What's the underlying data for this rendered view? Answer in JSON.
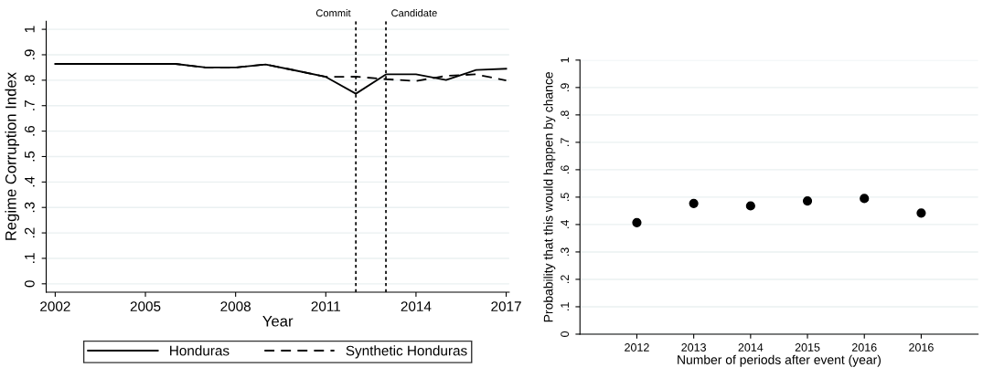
{
  "chart_data": [
    {
      "type": "line",
      "xlabel": "Year",
      "ylabel": "Regime Corruption Index",
      "x": [
        2002,
        2003,
        2004,
        2005,
        2006,
        2007,
        2008,
        2009,
        2010,
        2011,
        2012,
        2013,
        2014,
        2015,
        2016,
        2017
      ],
      "series": [
        {
          "name": "Honduras",
          "color": "#000000",
          "line_style": "solid",
          "values": [
            0.864,
            0.864,
            0.864,
            0.864,
            0.864,
            0.85,
            0.85,
            0.862,
            0.838,
            0.813,
            0.747,
            0.823,
            0.823,
            0.801,
            0.84,
            0.845
          ]
        },
        {
          "name": "Synthetic Honduras",
          "color": "#000000",
          "line_style": "dashed",
          "values": [
            0.864,
            0.864,
            0.864,
            0.864,
            0.864,
            0.85,
            0.85,
            0.862,
            0.838,
            0.813,
            0.814,
            0.804,
            0.797,
            0.817,
            0.823,
            0.799
          ]
        }
      ],
      "xlim": [
        2001.7,
        2017.1
      ],
      "xticks": [
        2002,
        2005,
        2008,
        2011,
        2014,
        2017
      ],
      "ylim": [
        -0.033,
        1.032
      ],
      "yticks": [
        0,
        {
          "value": 0.1,
          "label": ".1"
        },
        {
          "value": 0.2,
          "label": ".2"
        },
        {
          "value": 0.3,
          "label": ".3"
        },
        {
          "value": 0.4,
          "label": ".4"
        },
        {
          "value": 0.5,
          "label": ".5"
        },
        {
          "value": 0.6,
          "label": ".6"
        },
        {
          "value": 0.7,
          "label": ".7"
        },
        {
          "value": 0.8,
          "label": ".8"
        },
        {
          "value": 0.9,
          "label": ".9"
        },
        1
      ],
      "ref_lines": [
        {
          "axis": "x",
          "value": 2012,
          "label": "Commit",
          "color": "#000000",
          "line_style": "dotted"
        },
        {
          "axis": "x",
          "value": 2013,
          "label": "Candidate",
          "color": "#000000",
          "line_style": "dotted"
        }
      ],
      "grid": "y",
      "legend": "bottom",
      "marker": "none"
    },
    {
      "type": "scatter",
      "xlabel": "Number of periods after event (year)",
      "ylabel": "Probability that this would happen by chance",
      "categories": [
        "2012",
        "2013",
        "2014",
        "2015",
        "2016",
        "2016"
      ],
      "values": [
        0.407,
        0.477,
        0.468,
        0.486,
        0.495,
        0.442
      ],
      "color": "#000000",
      "marker": "circle",
      "ylim": [
        0,
        1
      ],
      "yticks": [
        0,
        {
          "value": 0.1,
          "label": ".1"
        },
        {
          "value": 0.2,
          "label": ".2"
        },
        {
          "value": 0.3,
          "label": ".3"
        },
        {
          "value": 0.4,
          "label": ".4"
        },
        {
          "value": 0.5,
          "label": ".5"
        },
        {
          "value": 0.6,
          "label": ".6"
        },
        {
          "value": 0.7,
          "label": ".7"
        },
        {
          "value": 0.8,
          "label": ".8"
        },
        {
          "value": 0.9,
          "label": ".9"
        },
        1
      ],
      "grid": "y",
      "legend": false
    }
  ]
}
